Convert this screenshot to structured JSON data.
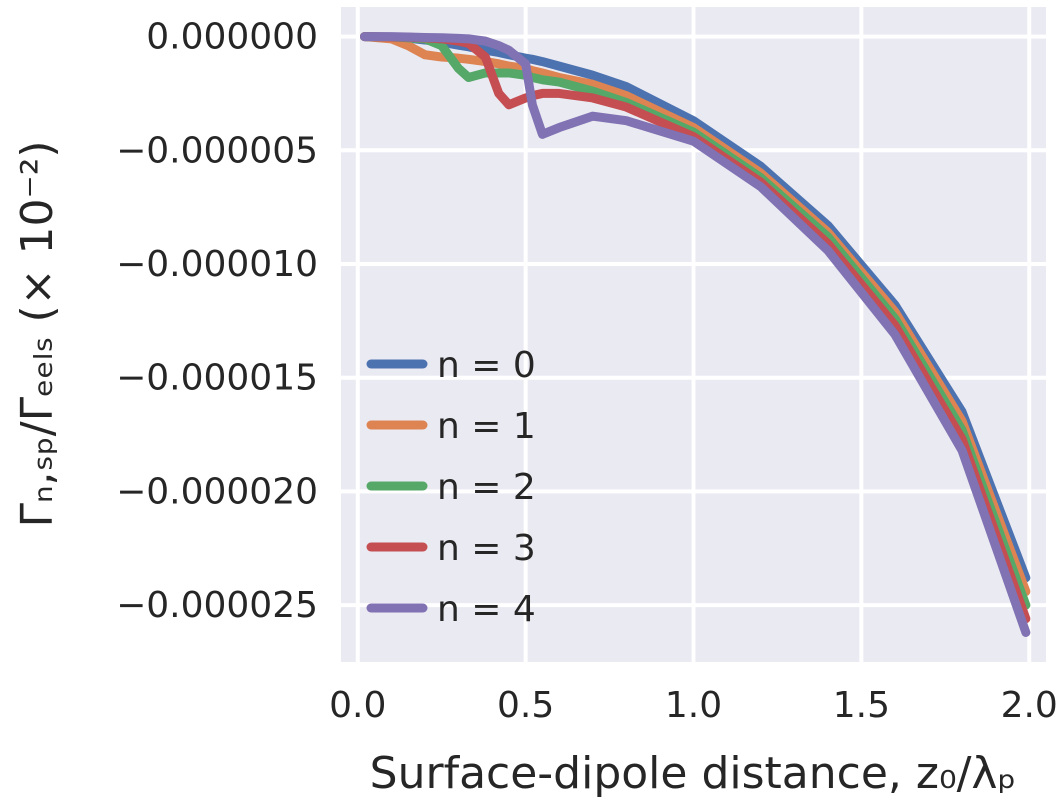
{
  "chart_data": {
    "type": "line",
    "xlabel": "Surface-dipole distance, z₀/λₚ",
    "ylabel": "Γₙ,ₛₚ/Γₑₑₗₛ (× 10⁻²)",
    "xlim": [
      -0.05,
      2.05
    ],
    "ylim": [
      -2.75e-05,
      1.3e-06
    ],
    "xticks": [
      0.0,
      0.5,
      1.0,
      1.5,
      2.0
    ],
    "xtick_labels": [
      "0.0",
      "0.5",
      "1.0",
      "1.5",
      "2.0"
    ],
    "yticks": [
      0,
      -5e-06,
      -1e-05,
      -1.5e-05,
      -2e-05,
      -2.5e-05
    ],
    "ytick_labels": [
      "0.000000",
      "−0.000005",
      "−0.000010",
      "−0.000015",
      "−0.000020",
      "−0.000025"
    ],
    "grid": true,
    "legend_position": "lower-left",
    "background_color": "#eaeaf2",
    "x": [
      0.02,
      0.1,
      0.15,
      0.2,
      0.25,
      0.3,
      0.33,
      0.38,
      0.42,
      0.45,
      0.5,
      0.52,
      0.55,
      0.6,
      0.7,
      0.8,
      1.0,
      1.2,
      1.4,
      1.6,
      1.8,
      1.99
    ],
    "series": [
      {
        "name": "n = 0",
        "color": "#4c72b0",
        "values": [
          0.0,
          -3e-08,
          -7e-08,
          -1.5e-07,
          -2.5e-07,
          -3.8e-07,
          -4.5e-07,
          -6e-07,
          -7e-07,
          -8e-07,
          -9.5e-07,
          -1e-06,
          -1.1e-06,
          -1.3e-06,
          -1.7e-06,
          -2.2e-06,
          -3.7e-06,
          -5.7e-06,
          -8.3e-06,
          -1.18e-05,
          -1.65e-05,
          -2.38e-05
        ]
      },
      {
        "name": "n = 1",
        "color": "#dd8452",
        "values": [
          0.0,
          -1e-07,
          -4e-07,
          -8e-07,
          -9e-07,
          -9.5e-07,
          -1e-06,
          -1.1e-06,
          -1.2e-06,
          -1.3e-06,
          -1.4e-06,
          -1.5e-06,
          -1.6e-06,
          -1.8e-06,
          -2.1e-06,
          -2.6e-06,
          -4e-06,
          -6e-06,
          -8.6e-06,
          -1.21e-05,
          -1.69e-05,
          -2.44e-05
        ]
      },
      {
        "name": "n = 2",
        "color": "#55a868",
        "values": [
          0.0,
          -2e-08,
          -5e-08,
          -1e-07,
          -4e-07,
          -1.4e-06,
          -1.8e-06,
          -1.6e-06,
          -1.6e-06,
          -1.6e-06,
          -1.7e-06,
          -1.8e-06,
          -1.9e-06,
          -2e-06,
          -2.4e-06,
          -2.9e-06,
          -4.2e-06,
          -6.2e-06,
          -8.8e-06,
          -1.24e-05,
          -1.73e-05,
          -2.5e-05
        ]
      },
      {
        "name": "n = 3",
        "color": "#c44e52",
        "values": [
          0.0,
          -2e-08,
          -3e-08,
          -6e-08,
          -1e-07,
          -2e-07,
          -3e-07,
          -9e-07,
          -2.5e-06,
          -3e-06,
          -2.7e-06,
          -2.6e-06,
          -2.5e-06,
          -2.5e-06,
          -2.7e-06,
          -3.1e-06,
          -4.4e-06,
          -6.4e-06,
          -9.1e-06,
          -1.27e-05,
          -1.77e-05,
          -2.56e-05
        ]
      },
      {
        "name": "n = 4",
        "color": "#8172b3",
        "values": [
          0.0,
          0.0,
          -2e-08,
          -4e-08,
          -5e-08,
          -8e-08,
          -1e-07,
          -2e-07,
          -4e-07,
          -6e-07,
          -1.2e-06,
          -3e-06,
          -4.3e-06,
          -4e-06,
          -3.5e-06,
          -3.7e-06,
          -4.6e-06,
          -6.6e-06,
          -9.4e-06,
          -1.31e-05,
          -1.82e-05,
          -2.62e-05
        ]
      }
    ]
  }
}
